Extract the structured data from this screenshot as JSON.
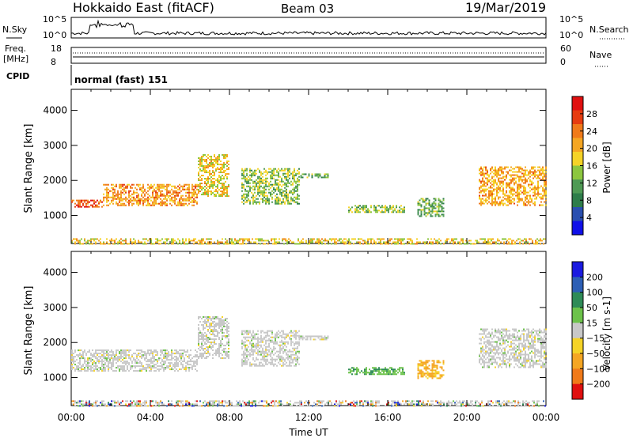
{
  "header": {
    "station": "Hokkaido East (fitACF)",
    "beam": "Beam 03",
    "date": "19/Mar/2019"
  },
  "top_panels": {
    "nsky_label": "N.Sky",
    "nsky_ticks": [
      "10^5",
      "10^0"
    ],
    "nsearch_label": "N.Search",
    "nsearch_ticks": [
      "10^5",
      "10^0"
    ],
    "freq_label": "Freq.",
    "freq_unit": "[MHz]",
    "freq_ticks": [
      "18",
      "8"
    ],
    "nave_label": "Nave",
    "nave_ticks": [
      "60",
      "0"
    ],
    "cpid_label": "CPID",
    "cpid_value": "normal (fast) 151"
  },
  "chart_data": [
    {
      "type": "heatmap",
      "name": "power",
      "ylabel": "Slant Range [km]",
      "ylim": [
        200,
        4600
      ],
      "yticks": [
        1000,
        2000,
        3000,
        4000
      ],
      "ytick_labels": [
        "1000",
        "2000",
        "3000",
        "4000"
      ],
      "xlim": [
        0,
        24
      ],
      "colorbar": {
        "label": "Power [dB]",
        "range": [
          0,
          32
        ],
        "ticks": [
          4,
          8,
          12,
          16,
          20,
          24,
          28
        ],
        "tick_labels": [
          "4",
          "8",
          "12",
          "16",
          "20",
          "24",
          "28"
        ],
        "colors": [
          "#1010e8",
          "#2a4fb0",
          "#2e7d4a",
          "#4f9a55",
          "#8cc63f",
          "#f5d327",
          "#f5a623",
          "#f07a1a",
          "#e63c10",
          "#e01010"
        ]
      },
      "echo_regions": [
        {
          "t0": 0.0,
          "t1": 1.6,
          "r0": 1250,
          "r1": 1450,
          "level": 27
        },
        {
          "t0": 1.6,
          "t1": 6.4,
          "r0": 1300,
          "r1": 1900,
          "level": 22
        },
        {
          "t0": 6.4,
          "t1": 8.0,
          "r0": 1550,
          "r1": 2750,
          "level": 18
        },
        {
          "t0": 8.6,
          "t1": 11.5,
          "r0": 1350,
          "r1": 2350,
          "level": 14
        },
        {
          "t0": 11.5,
          "t1": 13.0,
          "r0": 2100,
          "r1": 2200,
          "level": 12
        },
        {
          "t0": 14.0,
          "t1": 16.8,
          "r0": 1100,
          "r1": 1300,
          "level": 14
        },
        {
          "t0": 17.5,
          "t1": 18.8,
          "r0": 1000,
          "r1": 1500,
          "level": 12
        },
        {
          "t0": 20.6,
          "t1": 24.0,
          "r0": 1300,
          "r1": 2400,
          "level": 21
        },
        {
          "t0": 0.0,
          "t1": 24.0,
          "r0": 200,
          "r1": 350,
          "level": 18
        }
      ]
    },
    {
      "type": "heatmap",
      "name": "velocity",
      "ylabel": "Slant Range [km]",
      "ylim": [
        200,
        4600
      ],
      "yticks": [
        1000,
        2000,
        3000,
        4000
      ],
      "ytick_labels": [
        "1000",
        "2000",
        "3000",
        "4000"
      ],
      "xlim": [
        0,
        24
      ],
      "xticks": [
        0,
        4,
        8,
        12,
        16,
        20,
        24
      ],
      "xtick_labels": [
        "00:00",
        "04:00",
        "08:00",
        "12:00",
        "16:00",
        "20:00",
        "00:00"
      ],
      "xlabel": "Time UT",
      "colorbar": {
        "label": "Velocity [m s-1]",
        "ticks": [
          200,
          100,
          50,
          15,
          -15,
          -50,
          -100,
          -200
        ],
        "tick_labels": [
          "200",
          "100",
          "50",
          "15",
          "−15",
          "−50",
          "−100",
          "−200"
        ],
        "colors": [
          "#1a1ae0",
          "#2d5fb5",
          "#2e8b57",
          "#6cc24a",
          "#c8c8c8",
          "#f5d327",
          "#f5a623",
          "#f07a1a",
          "#e01010"
        ]
      },
      "echo_regions": [
        {
          "t0": 0.0,
          "t1": 6.4,
          "r0": 1200,
          "r1": 1800,
          "level": 0
        },
        {
          "t0": 6.4,
          "t1": 8.0,
          "r0": 1550,
          "r1": 2750,
          "level": 0
        },
        {
          "t0": 8.6,
          "t1": 11.5,
          "r0": 1350,
          "r1": 2350,
          "level": 0
        },
        {
          "t0": 11.5,
          "t1": 13.0,
          "r0": 2100,
          "r1": 2200,
          "level": 0
        },
        {
          "t0": 14.0,
          "t1": 16.8,
          "r0": 1100,
          "r1": 1300,
          "level": 35
        },
        {
          "t0": 17.5,
          "t1": 18.8,
          "r0": 1000,
          "r1": 1500,
          "level": -60
        },
        {
          "t0": 20.6,
          "t1": 24.0,
          "r0": 1300,
          "r1": 2400,
          "level": 0
        },
        {
          "t0": 0.0,
          "t1": 24.0,
          "r0": 200,
          "r1": 350,
          "level": -30
        }
      ]
    }
  ]
}
